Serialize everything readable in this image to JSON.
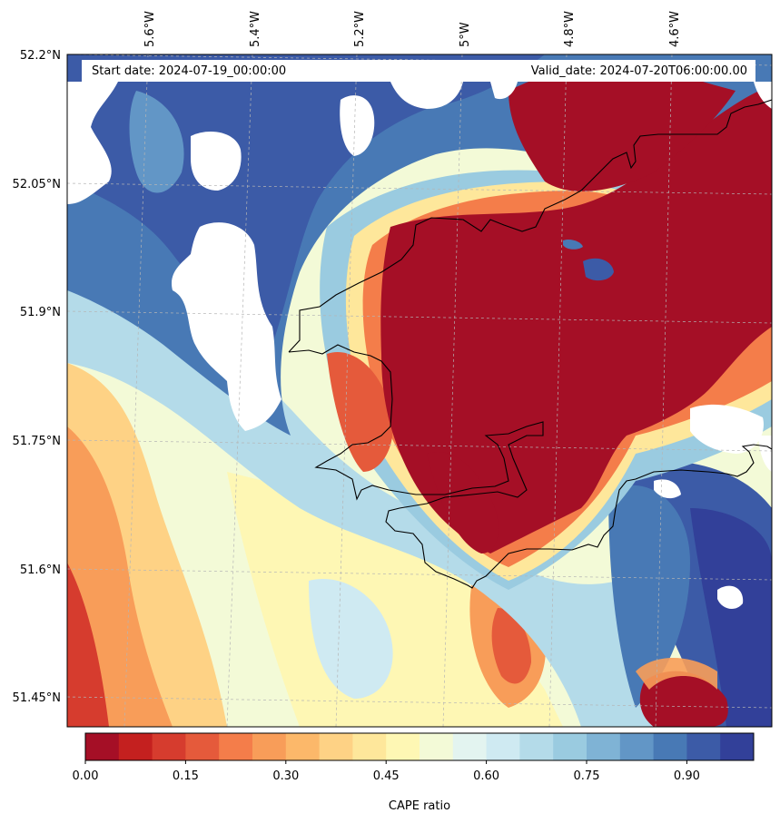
{
  "figure": {
    "start_label": "Start date: 2024-07-19_00:00:00",
    "valid_label": "Valid_date: 2024-07-20T06:00:00.00",
    "colorbar_label": "CAPE ratio"
  },
  "map": {
    "lon_ticks": [
      "5.6°W",
      "5.4°W",
      "5.2°W",
      "5°W",
      "4.8°W",
      "4.6°W"
    ],
    "lat_ticks": [
      "52.2°N",
      "52.05°N",
      "51.9°N",
      "51.75°N",
      "51.6°N",
      "51.45°N"
    ],
    "gridlines": "dashed",
    "colormap": "RdYlBu"
  },
  "colorbar": {
    "ticks": [
      "0.00",
      "0.15",
      "0.30",
      "0.45",
      "0.60",
      "0.75",
      "0.90"
    ],
    "colors": [
      "#a50f26",
      "#c4201f",
      "#d63c2e",
      "#e55a3b",
      "#f47d4a",
      "#f89d59",
      "#fcb86a",
      "#fed285",
      "#fee79b",
      "#fef7b4",
      "#f3fad7",
      "#e3f4f0",
      "#cfeaf2",
      "#b4dbe9",
      "#9acbe0",
      "#7fb3d5",
      "#6296c6",
      "#4879b5",
      "#3c5ba7",
      "#324099"
    ]
  }
}
